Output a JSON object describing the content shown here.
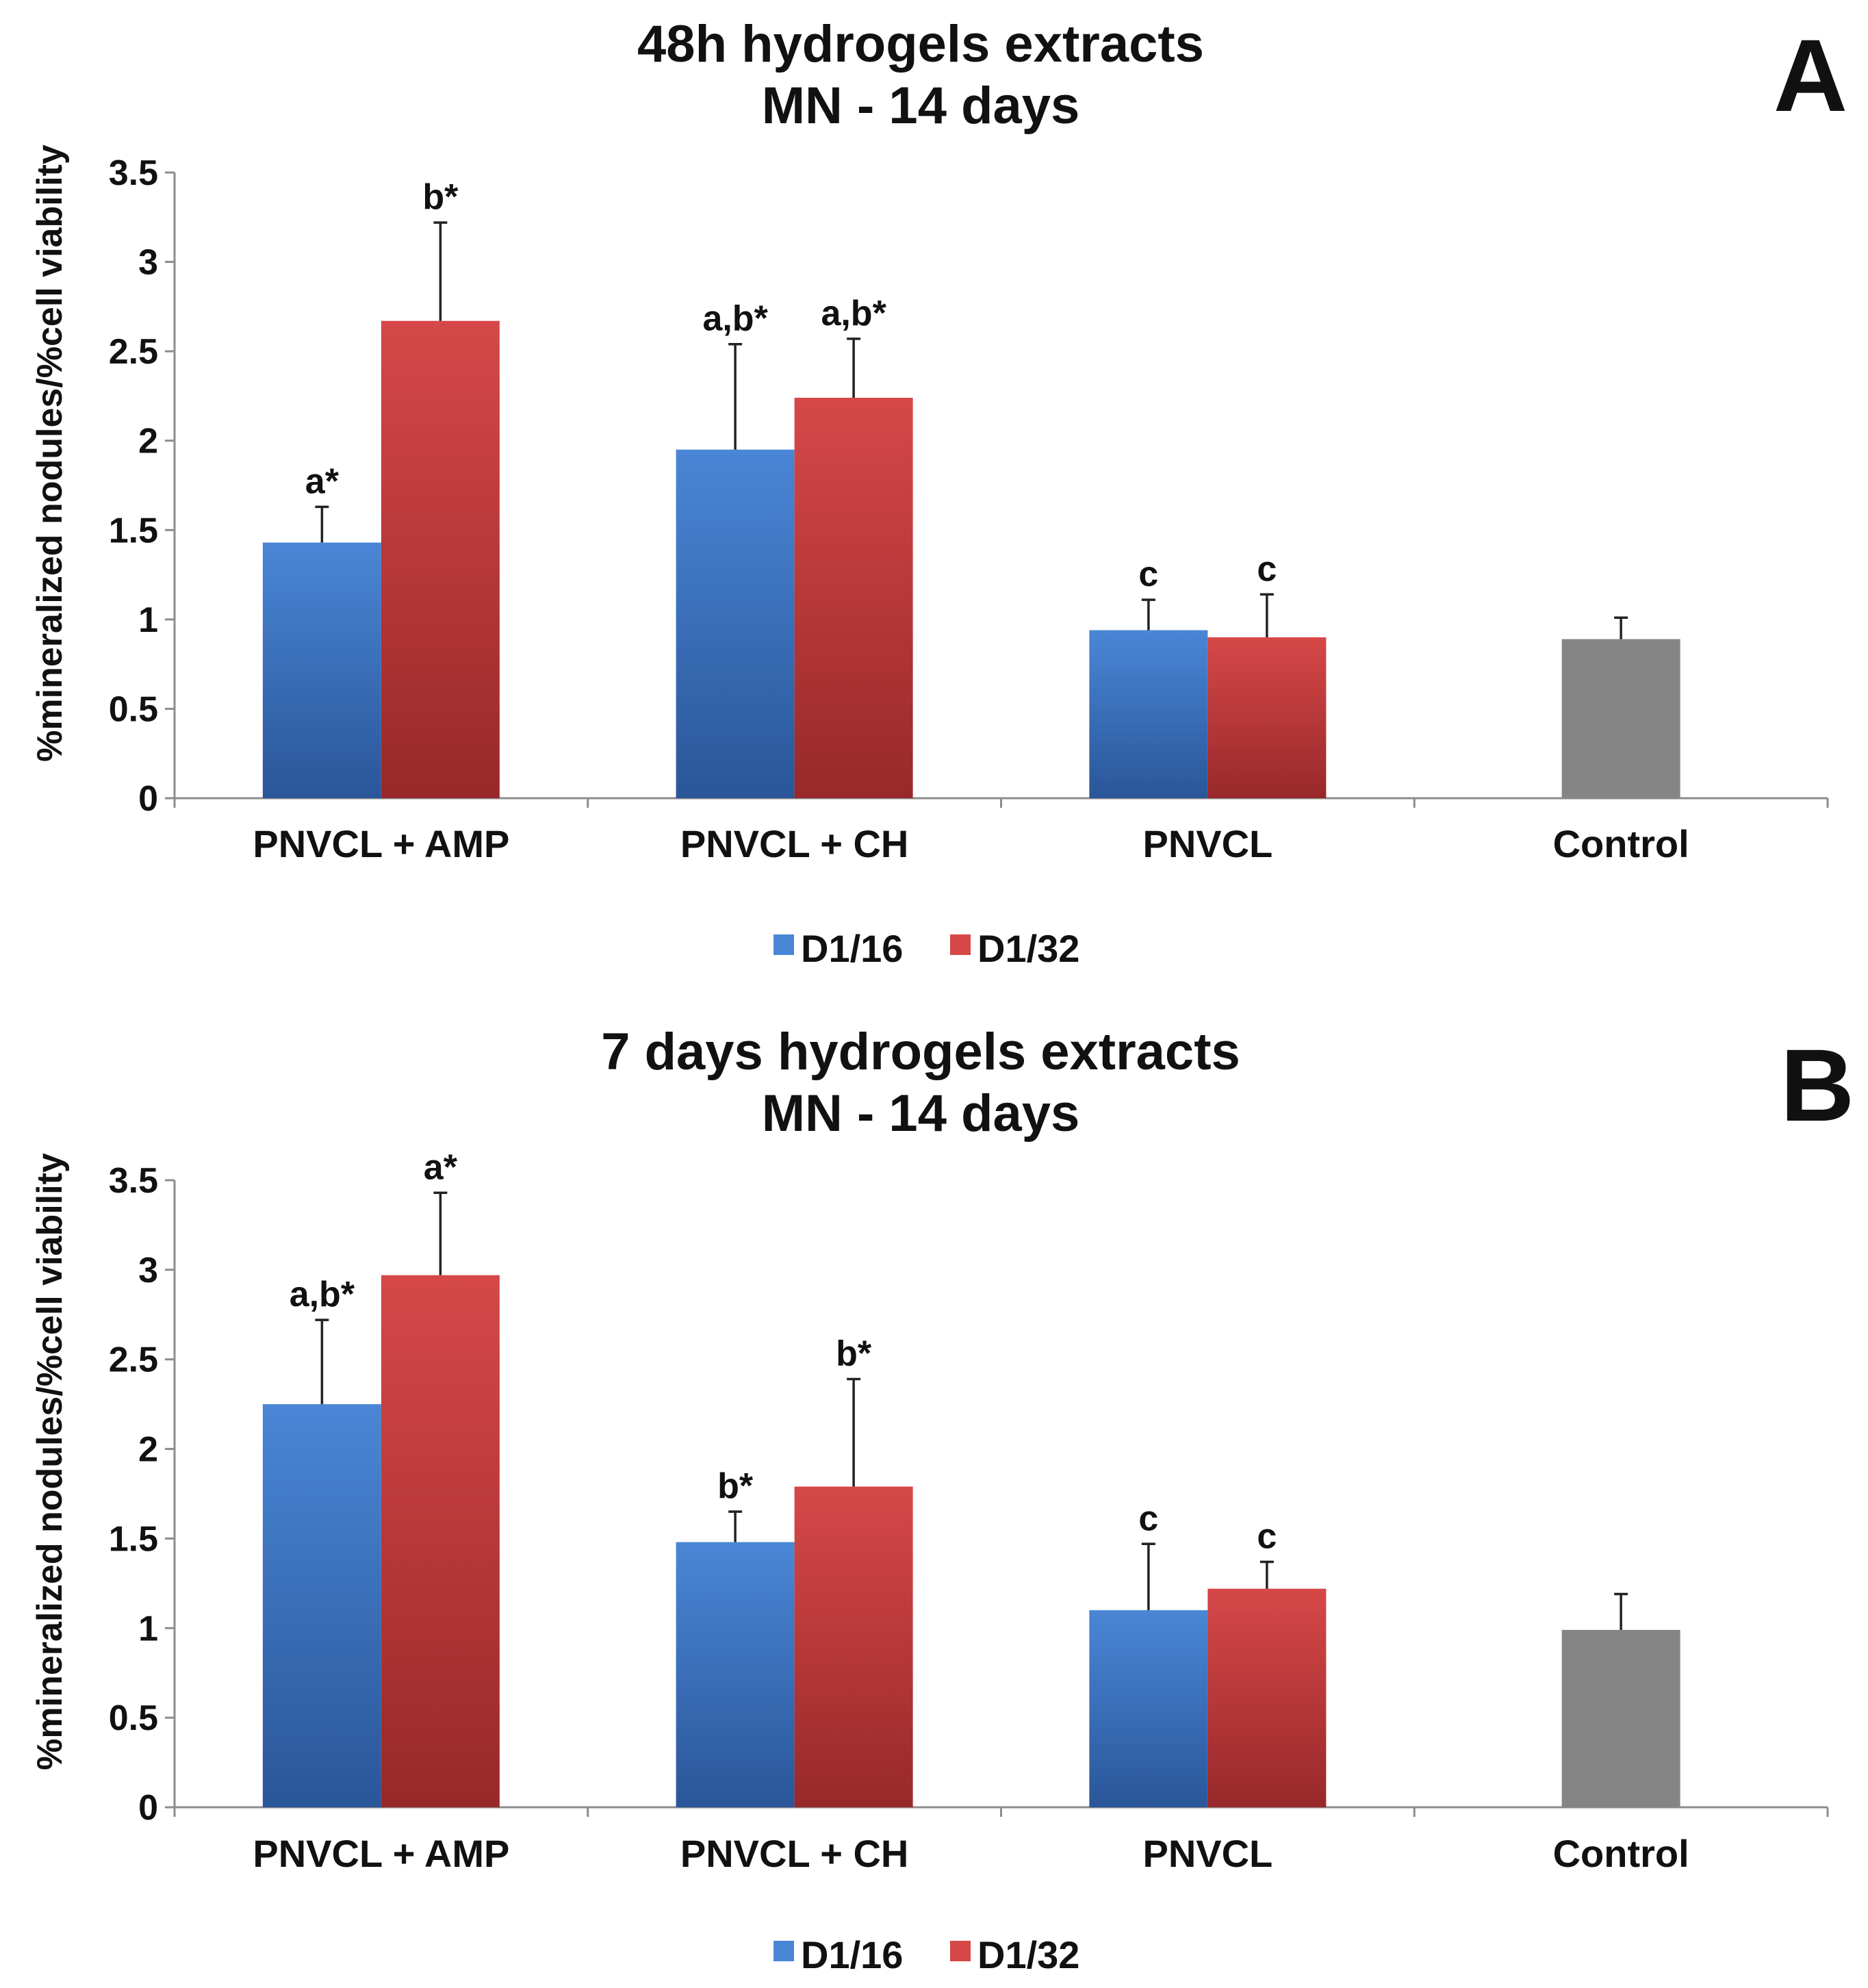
{
  "series_colors": {
    "D1/16": [
      "#4a86d6",
      "#2a5699"
    ],
    "D1/32": [
      "#d64848",
      "#98282a"
    ],
    "Control": [
      "#858585",
      "#858585"
    ]
  },
  "chart_data": [
    {
      "type": "bar",
      "panel_label": "A",
      "title_line1": "48h hydrogels extracts",
      "title_line2": "MN - 14 days",
      "ylabel": "%mineralized nodules/%cell viability",
      "xlabel": "",
      "ylim": [
        0,
        3.5
      ],
      "yticks": [
        "0",
        "0.5",
        "1",
        "1.5",
        "2",
        "2.5",
        "3",
        "3.5"
      ],
      "legend_position": "bottom-center",
      "categories": [
        "PNVCL + AMP",
        "PNVCL + CH",
        "PNVCL",
        "Control"
      ],
      "bars": [
        {
          "category": 0,
          "series": "D1/16",
          "value": 1.43,
          "error": 0.2,
          "label": "a*"
        },
        {
          "category": 0,
          "series": "D1/32",
          "value": 2.67,
          "error": 0.55,
          "label": "b*"
        },
        {
          "category": 1,
          "series": "D1/16",
          "value": 1.95,
          "error": 0.59,
          "label": "a,b*"
        },
        {
          "category": 1,
          "series": "D1/32",
          "value": 2.24,
          "error": 0.33,
          "label": "a,b*"
        },
        {
          "category": 2,
          "series": "D1/16",
          "value": 0.94,
          "error": 0.17,
          "label": "c"
        },
        {
          "category": 2,
          "series": "D1/32",
          "value": 0.9,
          "error": 0.24,
          "label": "c"
        },
        {
          "category": 3,
          "series": "Control",
          "value": 0.89,
          "error": 0.12,
          "label": ""
        }
      ],
      "legend": [
        "D1/16",
        "D1/32"
      ]
    },
    {
      "type": "bar",
      "panel_label": "B",
      "title_line1": "7 days hydrogels extracts",
      "title_line2": "MN - 14 days",
      "ylabel": "%mineralized nodules/%cell viability",
      "xlabel": "",
      "ylim": [
        0,
        3.5
      ],
      "yticks": [
        "0",
        "0.5",
        "1",
        "1.5",
        "2",
        "2.5",
        "3",
        "3.5"
      ],
      "legend_position": "bottom-center",
      "categories": [
        "PNVCL + AMP",
        "PNVCL + CH",
        "PNVCL",
        "Control"
      ],
      "bars": [
        {
          "category": 0,
          "series": "D1/16",
          "value": 2.25,
          "error": 0.47,
          "label": "a,b*"
        },
        {
          "category": 0,
          "series": "D1/32",
          "value": 2.97,
          "error": 0.46,
          "label": "a*"
        },
        {
          "category": 1,
          "series": "D1/16",
          "value": 1.48,
          "error": 0.17,
          "label": "b*"
        },
        {
          "category": 1,
          "series": "D1/32",
          "value": 1.79,
          "error": 0.6,
          "label": "b*"
        },
        {
          "category": 2,
          "series": "D1/16",
          "value": 1.1,
          "error": 0.37,
          "label": "c"
        },
        {
          "category": 2,
          "series": "D1/32",
          "value": 1.22,
          "error": 0.15,
          "label": "c"
        },
        {
          "category": 3,
          "series": "Control",
          "value": 0.99,
          "error": 0.2,
          "label": ""
        }
      ],
      "legend": [
        "D1/16",
        "D1/32"
      ]
    }
  ]
}
